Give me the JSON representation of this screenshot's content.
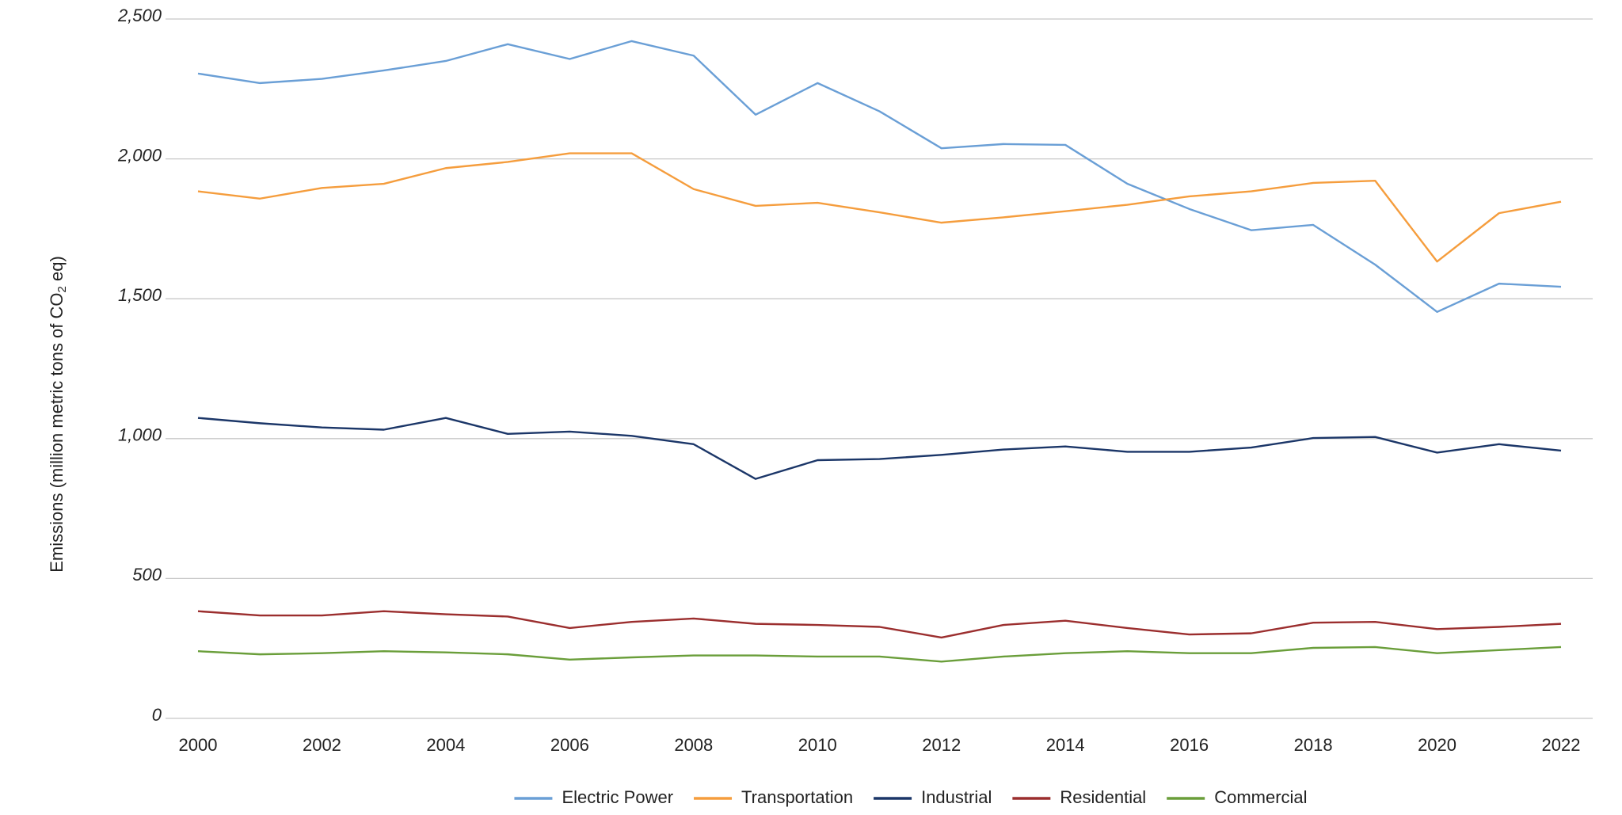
{
  "chart_data": {
    "type": "line",
    "ylabel": [
      "Emissions (million metric tons of CO",
      "2",
      " eq)"
    ],
    "x": [
      2000,
      2001,
      2002,
      2003,
      2004,
      2005,
      2006,
      2007,
      2008,
      2009,
      2010,
      2011,
      2012,
      2013,
      2014,
      2015,
      2016,
      2017,
      2018,
      2019,
      2020,
      2021,
      2022
    ],
    "xlim": [
      2000,
      2022
    ],
    "xticks": [
      2000,
      2002,
      2004,
      2006,
      2008,
      2010,
      2012,
      2014,
      2016,
      2018,
      2020,
      2022
    ],
    "ylim": [
      0,
      2500
    ],
    "yticks": [
      0,
      500,
      {
        "value": 1000,
        "label": "1,000"
      },
      {
        "value": 1500,
        "label": "1,500"
      },
      {
        "value": 2000,
        "label": "2,000"
      },
      {
        "value": 2500,
        "label": "2,500"
      }
    ],
    "grid": true,
    "legend": "bottom",
    "series": [
      {
        "name": "Electric Power",
        "color": "#6a9fd6",
        "values": [
          2305,
          2271,
          2286,
          2316,
          2350,
          2410,
          2357,
          2421,
          2369,
          2158,
          2271,
          2170,
          2038,
          2053,
          2050,
          1911,
          1821,
          1745,
          1764,
          1622,
          1453,
          1554,
          1543
        ]
      },
      {
        "name": "Transportation",
        "color": "#f59d3d",
        "values": [
          1884,
          1858,
          1896,
          1911,
          1967,
          1989,
          2020,
          2020,
          1892,
          1832,
          1843,
          1809,
          1772,
          1791,
          1813,
          1836,
          1866,
          1884,
          1914,
          1922,
          1633,
          1806,
          1847
        ]
      },
      {
        "name": "Industrial",
        "color": "#1b3668",
        "values": [
          1074,
          1055,
          1040,
          1032,
          1074,
          1017,
          1025,
          1010,
          980,
          856,
          923,
          927,
          942,
          961,
          972,
          953,
          953,
          968,
          1002,
          1006,
          950,
          980,
          957
        ]
      },
      {
        "name": "Residential",
        "color": "#9b2e2e",
        "values": [
          383,
          368,
          368,
          383,
          372,
          364,
          323,
          345,
          357,
          338,
          334,
          327,
          289,
          334,
          349,
          323,
          300,
          304,
          342,
          345,
          319,
          327,
          338
        ]
      },
      {
        "name": "Commercial",
        "color": "#6a9e3a",
        "values": [
          240,
          229,
          233,
          240,
          236,
          229,
          210,
          218,
          225,
          225,
          221,
          221,
          203,
          221,
          233,
          240,
          233,
          233,
          252,
          255,
          233,
          244,
          255
        ]
      }
    ]
  }
}
